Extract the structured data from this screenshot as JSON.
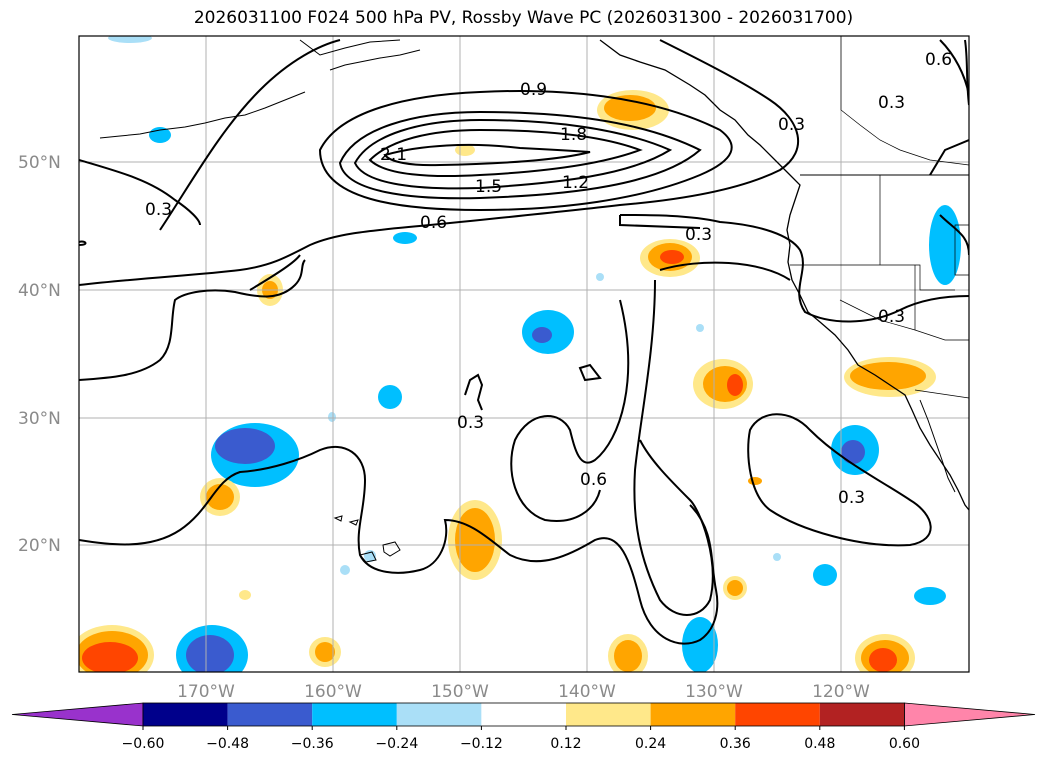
{
  "title": "2026031100 F024 500 hPa PV, Rossby Wave PC (2026031300 - 2026031700)",
  "lat_labels": [
    "50°N",
    "40°N",
    "30°N",
    "20°N"
  ],
  "lon_labels": [
    "170°W",
    "160°W",
    "150°W",
    "140°W",
    "130°W",
    "120°W"
  ],
  "contour_labels": [
    "0.9",
    "1.8",
    "2.1",
    "1.5",
    "1.2",
    "0.6",
    "0.3",
    "0.3",
    "0.3",
    "0.3",
    "0.6",
    "0.3",
    "0.3",
    "0.6",
    "0.3"
  ],
  "colorbar": {
    "ticks": [
      "−0.60",
      "−0.48",
      "−0.36",
      "−0.24",
      "−0.12",
      "0.12",
      "0.24",
      "0.36",
      "0.48",
      "0.60"
    ],
    "colors": [
      "#9932cc",
      "#00008b",
      "#3a5bcf",
      "#00bfff",
      "#aadff7",
      "#ffffff",
      "#ffe88a",
      "#ffa500",
      "#ff4500",
      "#b22222",
      "#ff85aa"
    ]
  }
}
